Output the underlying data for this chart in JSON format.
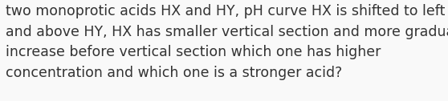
{
  "text": "two monoprotic acids HX and HY, pH curve HX is shifted to left\nand above HY, HX has smaller vertical section and more gradual\nincrease before vertical section which one has higher\nconcentration and which one is a stronger acid?",
  "background_color": "#f9f9f9",
  "text_color": "#333333",
  "font_size": 12.5,
  "figwidth": 5.58,
  "figheight": 1.26,
  "dpi": 100
}
